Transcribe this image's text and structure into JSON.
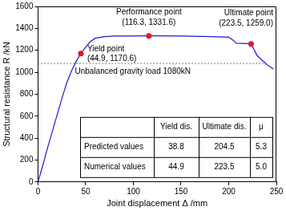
{
  "chart_data": {
    "type": "line",
    "xlabel": "Joint displacement Δ /mm",
    "ylabel": "Structural resistance R /kN",
    "x": [
      0,
      5,
      10,
      15,
      20,
      25,
      30,
      35,
      40,
      44.9,
      50,
      55,
      60,
      70,
      80,
      100,
      116.3,
      150,
      180,
      200,
      205,
      208,
      215,
      223.5,
      227,
      230,
      235,
      240,
      245,
      247
    ],
    "values": [
      0,
      150,
      310,
      460,
      610,
      760,
      900,
      1010,
      1100,
      1170.6,
      1230,
      1280,
      1310,
      1325,
      1330,
      1331,
      1331.6,
      1330,
      1325,
      1320,
      1290,
      1265,
      1262,
      1259.0,
      1200,
      1150,
      1110,
      1070,
      1040,
      1030
    ],
    "color": "#1a1ad6",
    "line_style": "solid",
    "xlim": [
      0,
      250
    ],
    "xticks": [
      0,
      50,
      100,
      150,
      200,
      250
    ],
    "ylim": [
      0,
      1600
    ],
    "yticks": [
      0,
      200,
      400,
      600,
      800,
      1000,
      1200,
      1400,
      1600
    ],
    "grid": false,
    "annotations": [
      {
        "label": "Yield point",
        "coord_label": "(44.9, 1170.6)",
        "x": 44.9,
        "y": 1170.6,
        "color": "#e8171b"
      },
      {
        "label": "Performance point",
        "coord_label": "(116.3, 1331.6)",
        "x": 116.3,
        "y": 1331.6,
        "color": "#e8171b"
      },
      {
        "label": "Ultimate point",
        "coord_label": "(223.5, 1259.0)",
        "x": 223.5,
        "y": 1259.0,
        "color": "#e8171b"
      }
    ],
    "reference_line": {
      "y": 1080,
      "label": "Unbalanced gravity load 1080kN",
      "line_style": "dotted",
      "color": "#555555"
    },
    "table": {
      "columns": [
        "Yield dis.",
        "Ultimate dis.",
        "μ"
      ],
      "rows": [
        {
          "label": "Predicted values",
          "cells": [
            "38.8",
            "204.5",
            "5.3"
          ]
        },
        {
          "label": "Numerical values",
          "cells": [
            "44.9",
            "223.5",
            "5.0"
          ]
        }
      ]
    }
  }
}
